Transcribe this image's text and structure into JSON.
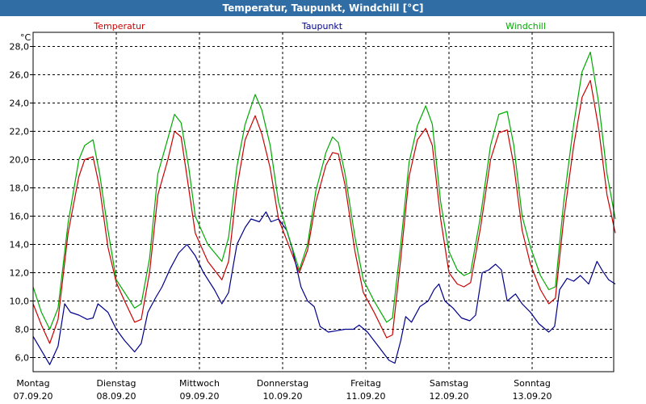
{
  "window": {
    "title": "Temperatur, Taupunkt, Windchill [°C]"
  },
  "chart_data": {
    "type": "line",
    "unit_label": "°C",
    "ylim": [
      5.0,
      29.0
    ],
    "y_ticks": [
      "6,0",
      "8,0",
      "10,0",
      "12,0",
      "14,0",
      "16,0",
      "18,0",
      "20,0",
      "22,0",
      "24,0",
      "26,0",
      "28,0"
    ],
    "x_days": [
      {
        "day": "Montag",
        "date": "07.09.20"
      },
      {
        "day": "Dienstag",
        "date": "08.09.20"
      },
      {
        "day": "Mittwoch",
        "date": "09.09.20"
      },
      {
        "day": "Donnerstag",
        "date": "10.09.20"
      },
      {
        "day": "Freitag",
        "date": "11.09.20"
      },
      {
        "day": "Samstag",
        "date": "12.09.20"
      },
      {
        "day": "Sonntag",
        "date": "13.09.20"
      }
    ],
    "grid": true,
    "series": [
      {
        "name": "Temperatur",
        "color": "#cc0000",
        "points": [
          [
            0.0,
            9.8
          ],
          [
            0.1,
            8.3
          ],
          [
            0.2,
            7.0
          ],
          [
            0.3,
            8.7
          ],
          [
            0.42,
            14.8
          ],
          [
            0.55,
            18.8
          ],
          [
            0.62,
            20.0
          ],
          [
            0.72,
            20.2
          ],
          [
            0.8,
            18.0
          ],
          [
            0.9,
            13.8
          ],
          [
            1.0,
            11.3
          ],
          [
            1.1,
            10.0
          ],
          [
            1.22,
            8.5
          ],
          [
            1.3,
            8.7
          ],
          [
            1.4,
            12.0
          ],
          [
            1.5,
            17.5
          ],
          [
            1.62,
            20.0
          ],
          [
            1.7,
            22.0
          ],
          [
            1.78,
            21.6
          ],
          [
            1.87,
            18.0
          ],
          [
            1.95,
            14.8
          ],
          [
            2.1,
            12.8
          ],
          [
            2.27,
            11.5
          ],
          [
            2.35,
            12.8
          ],
          [
            2.45,
            18.0
          ],
          [
            2.55,
            21.4
          ],
          [
            2.67,
            23.1
          ],
          [
            2.75,
            21.8
          ],
          [
            2.85,
            19.4
          ],
          [
            2.95,
            15.8
          ],
          [
            3.05,
            14.3
          ],
          [
            3.2,
            12.0
          ],
          [
            3.3,
            13.6
          ],
          [
            3.4,
            17.0
          ],
          [
            3.52,
            19.6
          ],
          [
            3.6,
            20.5
          ],
          [
            3.67,
            20.4
          ],
          [
            3.75,
            18.2
          ],
          [
            3.87,
            13.5
          ],
          [
            3.97,
            10.6
          ],
          [
            4.1,
            9.2
          ],
          [
            4.25,
            7.4
          ],
          [
            4.32,
            7.6
          ],
          [
            4.42,
            13.0
          ],
          [
            4.52,
            18.8
          ],
          [
            4.62,
            21.4
          ],
          [
            4.72,
            22.2
          ],
          [
            4.8,
            21.0
          ],
          [
            4.9,
            15.8
          ],
          [
            5.0,
            12.0
          ],
          [
            5.1,
            11.2
          ],
          [
            5.18,
            11.0
          ],
          [
            5.26,
            11.3
          ],
          [
            5.38,
            15.2
          ],
          [
            5.5,
            20.0
          ],
          [
            5.6,
            21.9
          ],
          [
            5.7,
            22.1
          ],
          [
            5.78,
            19.6
          ],
          [
            5.88,
            15.0
          ],
          [
            5.98,
            12.6
          ],
          [
            6.1,
            10.8
          ],
          [
            6.2,
            9.8
          ],
          [
            6.28,
            10.2
          ],
          [
            6.38,
            15.8
          ],
          [
            6.5,
            21.0
          ],
          [
            6.6,
            24.4
          ],
          [
            6.7,
            25.6
          ],
          [
            6.8,
            22.2
          ],
          [
            6.9,
            17.5
          ],
          [
            7.0,
            14.8
          ]
        ]
      },
      {
        "name": "Taupunkt",
        "color": "#00008b",
        "points": [
          [
            0.0,
            7.5
          ],
          [
            0.1,
            6.5
          ],
          [
            0.2,
            5.5
          ],
          [
            0.3,
            6.8
          ],
          [
            0.38,
            9.8
          ],
          [
            0.45,
            9.2
          ],
          [
            0.55,
            9.0
          ],
          [
            0.65,
            8.7
          ],
          [
            0.72,
            8.8
          ],
          [
            0.78,
            9.8
          ],
          [
            0.9,
            9.2
          ],
          [
            1.0,
            8.0
          ],
          [
            1.1,
            7.2
          ],
          [
            1.22,
            6.4
          ],
          [
            1.3,
            7.0
          ],
          [
            1.38,
            9.2
          ],
          [
            1.47,
            10.2
          ],
          [
            1.55,
            11.0
          ],
          [
            1.65,
            12.3
          ],
          [
            1.75,
            13.4
          ],
          [
            1.85,
            14.0
          ],
          [
            1.95,
            13.2
          ],
          [
            2.05,
            12.0
          ],
          [
            2.18,
            10.8
          ],
          [
            2.27,
            9.8
          ],
          [
            2.35,
            10.6
          ],
          [
            2.45,
            14.0
          ],
          [
            2.55,
            15.2
          ],
          [
            2.62,
            15.8
          ],
          [
            2.72,
            15.6
          ],
          [
            2.8,
            16.3
          ],
          [
            2.86,
            15.6
          ],
          [
            2.95,
            15.8
          ],
          [
            3.05,
            15.0
          ],
          [
            3.12,
            13.6
          ],
          [
            3.22,
            11.0
          ],
          [
            3.3,
            10.0
          ],
          [
            3.38,
            9.6
          ],
          [
            3.45,
            8.2
          ],
          [
            3.55,
            7.8
          ],
          [
            3.65,
            7.9
          ],
          [
            3.75,
            8.0
          ],
          [
            3.85,
            8.0
          ],
          [
            3.92,
            8.3
          ],
          [
            4.02,
            7.8
          ],
          [
            4.15,
            6.8
          ],
          [
            4.28,
            5.8
          ],
          [
            4.35,
            5.6
          ],
          [
            4.42,
            7.2
          ],
          [
            4.48,
            8.9
          ],
          [
            4.55,
            8.5
          ],
          [
            4.65,
            9.6
          ],
          [
            4.75,
            10.0
          ],
          [
            4.82,
            10.8
          ],
          [
            4.88,
            11.2
          ],
          [
            4.95,
            10.0
          ],
          [
            5.05,
            9.5
          ],
          [
            5.15,
            8.8
          ],
          [
            5.25,
            8.6
          ],
          [
            5.32,
            9.0
          ],
          [
            5.4,
            12.0
          ],
          [
            5.48,
            12.2
          ],
          [
            5.56,
            12.6
          ],
          [
            5.63,
            12.2
          ],
          [
            5.7,
            10.0
          ],
          [
            5.8,
            10.5
          ],
          [
            5.88,
            9.8
          ],
          [
            5.98,
            9.2
          ],
          [
            6.08,
            8.4
          ],
          [
            6.2,
            7.8
          ],
          [
            6.27,
            8.2
          ],
          [
            6.33,
            10.8
          ],
          [
            6.42,
            11.6
          ],
          [
            6.5,
            11.4
          ],
          [
            6.58,
            11.8
          ],
          [
            6.68,
            11.2
          ],
          [
            6.78,
            12.8
          ],
          [
            6.85,
            12.1
          ],
          [
            6.92,
            11.5
          ],
          [
            7.0,
            11.2
          ]
        ]
      },
      {
        "name": "Windchill",
        "color": "#00aa00",
        "points": [
          [
            0.0,
            11.0
          ],
          [
            0.1,
            9.2
          ],
          [
            0.2,
            8.0
          ],
          [
            0.3,
            9.5
          ],
          [
            0.42,
            15.5
          ],
          [
            0.55,
            20.0
          ],
          [
            0.62,
            21.0
          ],
          [
            0.72,
            21.4
          ],
          [
            0.8,
            19.0
          ],
          [
            0.9,
            15.0
          ],
          [
            1.0,
            11.5
          ],
          [
            1.1,
            10.6
          ],
          [
            1.22,
            9.5
          ],
          [
            1.3,
            9.8
          ],
          [
            1.4,
            13.0
          ],
          [
            1.5,
            19.0
          ],
          [
            1.62,
            21.5
          ],
          [
            1.7,
            23.2
          ],
          [
            1.78,
            22.6
          ],
          [
            1.87,
            19.5
          ],
          [
            1.95,
            16.0
          ],
          [
            2.1,
            14.0
          ],
          [
            2.27,
            12.8
          ],
          [
            2.35,
            14.5
          ],
          [
            2.45,
            19.5
          ],
          [
            2.55,
            22.5
          ],
          [
            2.67,
            24.6
          ],
          [
            2.75,
            23.5
          ],
          [
            2.85,
            21.0
          ],
          [
            2.95,
            17.0
          ],
          [
            3.05,
            15.0
          ],
          [
            3.2,
            12.2
          ],
          [
            3.3,
            14.0
          ],
          [
            3.4,
            17.8
          ],
          [
            3.52,
            20.5
          ],
          [
            3.6,
            21.6
          ],
          [
            3.67,
            21.2
          ],
          [
            3.75,
            19.0
          ],
          [
            3.87,
            14.5
          ],
          [
            3.97,
            11.5
          ],
          [
            4.1,
            10.0
          ],
          [
            4.25,
            8.5
          ],
          [
            4.32,
            8.8
          ],
          [
            4.42,
            14.0
          ],
          [
            4.52,
            19.8
          ],
          [
            4.62,
            22.4
          ],
          [
            4.72,
            23.8
          ],
          [
            4.8,
            22.5
          ],
          [
            4.9,
            17.0
          ],
          [
            5.0,
            13.5
          ],
          [
            5.1,
            12.2
          ],
          [
            5.18,
            11.8
          ],
          [
            5.26,
            12.0
          ],
          [
            5.38,
            16.0
          ],
          [
            5.5,
            21.0
          ],
          [
            5.6,
            23.2
          ],
          [
            5.7,
            23.4
          ],
          [
            5.78,
            21.0
          ],
          [
            5.88,
            16.0
          ],
          [
            5.98,
            13.8
          ],
          [
            6.1,
            11.8
          ],
          [
            6.2,
            10.8
          ],
          [
            6.28,
            11.0
          ],
          [
            6.38,
            17.0
          ],
          [
            6.5,
            22.5
          ],
          [
            6.6,
            26.2
          ],
          [
            6.7,
            27.6
          ],
          [
            6.8,
            24.0
          ],
          [
            6.9,
            19.0
          ],
          [
            7.0,
            15.8
          ]
        ]
      }
    ]
  }
}
